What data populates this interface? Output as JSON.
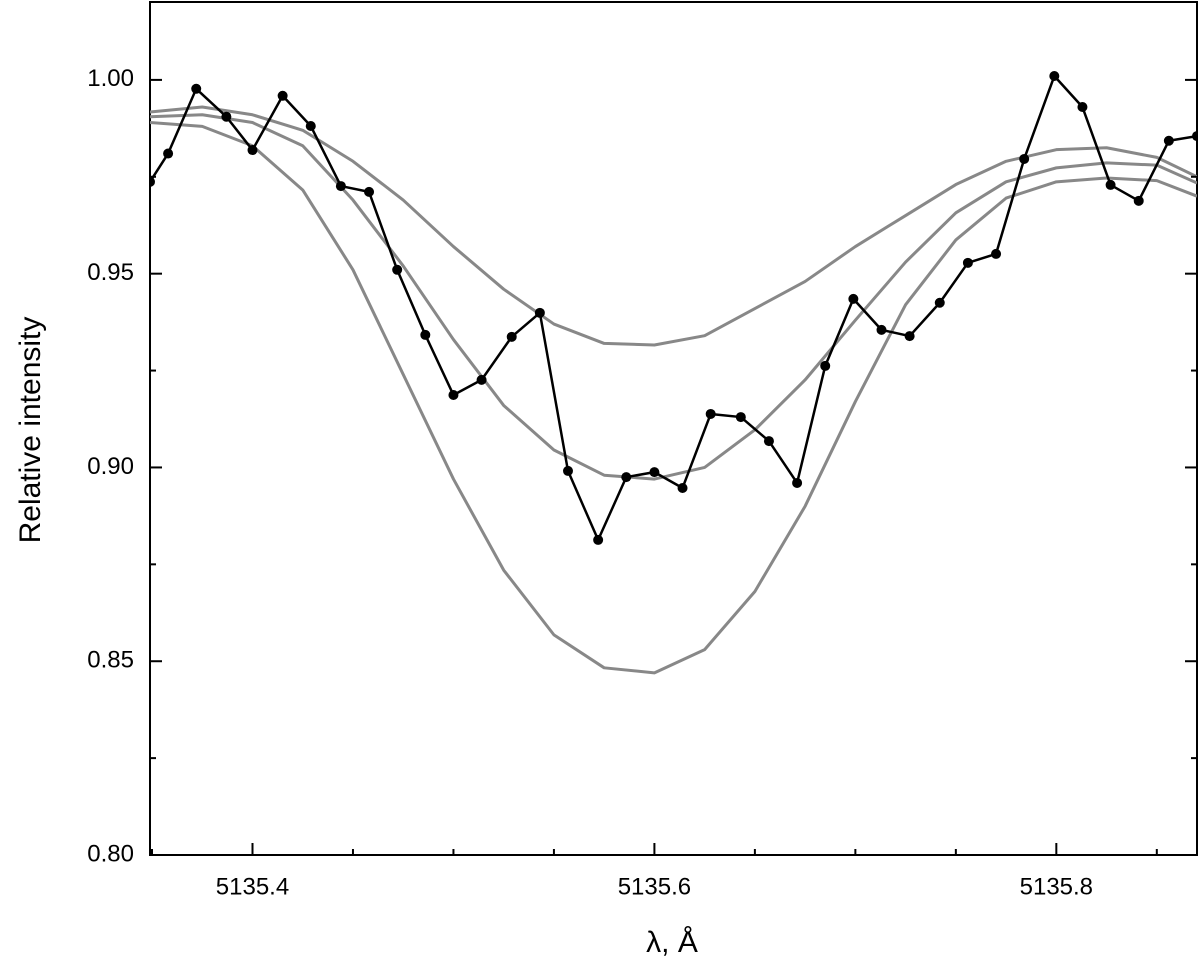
{
  "chart_data": {
    "type": "line",
    "x_label": "λ, Å",
    "y_label": "Relative intensity",
    "xlim": [
      5135.349,
      5135.87
    ],
    "ylim": [
      0.8,
      1.0201
    ],
    "xticks": [
      5135.4,
      5135.6,
      5135.8
    ],
    "xminorticks": [
      5135.35,
      5135.45,
      5135.5,
      5135.55,
      5135.65,
      5135.7,
      5135.75,
      5135.85
    ],
    "yticks": [
      {
        "value": 0.8,
        "label": "0.80"
      },
      {
        "value": 0.85,
        "label": "0.85"
      },
      {
        "value": 0.9,
        "label": "0.90"
      },
      {
        "value": 0.95,
        "label": "0.95"
      },
      {
        "value": 1.0,
        "label": "1.00"
      }
    ],
    "yminorticks": [
      0.825,
      0.875,
      0.925,
      0.975
    ],
    "series": [
      {
        "color": "#888888",
        "x": [
          5135.349,
          5135.375,
          5135.4,
          5135.425,
          5135.45,
          5135.475,
          5135.5,
          5135.525,
          5135.55,
          5135.575,
          5135.6,
          5135.625,
          5135.65,
          5135.675,
          5135.7,
          5135.725,
          5135.75,
          5135.775,
          5135.8,
          5135.825,
          5135.85,
          5135.87
        ],
        "values": [
          0.9917,
          0.993,
          0.991,
          0.987,
          0.979,
          0.969,
          0.957,
          0.946,
          0.937,
          0.932,
          0.9316,
          0.934,
          0.941,
          0.948,
          0.957,
          0.965,
          0.973,
          0.979,
          0.982,
          0.9825,
          0.98,
          0.975
        ]
      },
      {
        "color": "#888888",
        "x": [
          5135.349,
          5135.375,
          5135.4,
          5135.425,
          5135.45,
          5135.475,
          5135.5,
          5135.525,
          5135.55,
          5135.575,
          5135.6,
          5135.625,
          5135.65,
          5135.675,
          5135.7,
          5135.725,
          5135.75,
          5135.775,
          5135.8,
          5135.825,
          5135.85,
          5135.87
        ],
        "values": [
          0.9905,
          0.991,
          0.989,
          0.983,
          0.969,
          0.952,
          0.933,
          0.916,
          0.9045,
          0.898,
          0.897,
          0.9,
          0.9097,
          0.9226,
          0.938,
          0.953,
          0.9657,
          0.9737,
          0.9773,
          0.9786,
          0.978,
          0.9734
        ]
      },
      {
        "color": "#888888",
        "x": [
          5135.349,
          5135.375,
          5135.4,
          5135.425,
          5135.45,
          5135.475,
          5135.5,
          5135.525,
          5135.55,
          5135.575,
          5135.6,
          5135.625,
          5135.65,
          5135.675,
          5135.7,
          5135.725,
          5135.75,
          5135.775,
          5135.8,
          5135.825,
          5135.85,
          5135.87
        ],
        "values": [
          0.989,
          0.988,
          0.983,
          0.9716,
          0.951,
          0.924,
          0.897,
          0.8735,
          0.8568,
          0.8483,
          0.847,
          0.853,
          0.868,
          0.89,
          0.917,
          0.942,
          0.9587,
          0.9695,
          0.9737,
          0.9747,
          0.974,
          0.97
        ]
      },
      {
        "color": "#000000",
        "markers": true,
        "x": [
          5135.349,
          5135.358,
          5135.372,
          5135.387,
          5135.4,
          5135.415,
          5135.429,
          5135.444,
          5135.458,
          5135.472,
          5135.486,
          5135.5,
          5135.514,
          5135.529,
          5135.543,
          5135.557,
          5135.572,
          5135.586,
          5135.6,
          5135.614,
          5135.628,
          5135.643,
          5135.657,
          5135.671,
          5135.685,
          5135.699,
          5135.713,
          5135.727,
          5135.742,
          5135.756,
          5135.77,
          5135.784,
          5135.799,
          5135.813,
          5135.827,
          5135.841,
          5135.856,
          5135.87
        ],
        "values": [
          0.9737,
          0.981,
          0.9977,
          0.9905,
          0.9819,
          0.9959,
          0.9881,
          0.9726,
          0.9711,
          0.951,
          0.9342,
          0.9187,
          0.9226,
          0.9337,
          0.9399,
          0.8991,
          0.8813,
          0.8975,
          0.8988,
          0.8947,
          0.9138,
          0.913,
          0.9068,
          0.896,
          0.9262,
          0.9435,
          0.9355,
          0.9339,
          0.9425,
          0.9528,
          0.9551,
          0.9796,
          1.001,
          0.993,
          0.9729,
          0.9688,
          0.9843,
          0.9855
        ]
      }
    ]
  }
}
